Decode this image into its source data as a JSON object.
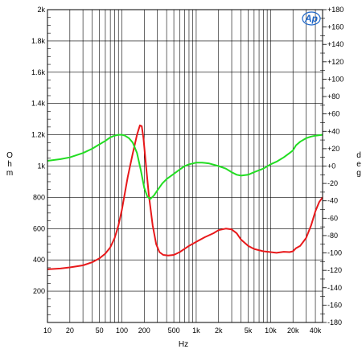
{
  "chart_data": {
    "type": "line",
    "title": "",
    "xlabel": "Hz",
    "ylabel_left": "Ohm",
    "ylabel_right": "deg",
    "x_scale": "log",
    "xlim": [
      10,
      50000
    ],
    "ylim_left": [
      0,
      2000
    ],
    "ylim_right": [
      -180,
      180
    ],
    "grid": true,
    "legend": "none",
    "logo_text": "Ap",
    "x_ticks": [
      {
        "value": 10,
        "label": "10"
      },
      {
        "value": 20,
        "label": "20"
      },
      {
        "value": 50,
        "label": "50"
      },
      {
        "value": 100,
        "label": "100"
      },
      {
        "value": 200,
        "label": "200"
      },
      {
        "value": 500,
        "label": "500"
      },
      {
        "value": 1000,
        "label": "1k"
      },
      {
        "value": 2000,
        "label": "2k"
      },
      {
        "value": 5000,
        "label": "5k"
      },
      {
        "value": 10000,
        "label": "10k"
      },
      {
        "value": 20000,
        "label": "20k"
      },
      {
        "value": 40000,
        "label": "40k"
      }
    ],
    "y_left_ticks": [
      {
        "value": 200,
        "label": "200"
      },
      {
        "value": 400,
        "label": "400"
      },
      {
        "value": 600,
        "label": "600"
      },
      {
        "value": 800,
        "label": "800"
      },
      {
        "value": 1000,
        "label": "1k"
      },
      {
        "value": 1200,
        "label": "1.2k"
      },
      {
        "value": 1400,
        "label": "1.4k"
      },
      {
        "value": 1600,
        "label": "1.6k"
      },
      {
        "value": 1800,
        "label": "1.8k"
      },
      {
        "value": 2000,
        "label": "2k"
      }
    ],
    "y_right_ticks": [
      {
        "value": 180,
        "label": "+180"
      },
      {
        "value": 160,
        "label": "+160"
      },
      {
        "value": 140,
        "label": "+140"
      },
      {
        "value": 120,
        "label": "+120"
      },
      {
        "value": 100,
        "label": "+100"
      },
      {
        "value": 80,
        "label": "+80"
      },
      {
        "value": 60,
        "label": "+60"
      },
      {
        "value": 40,
        "label": "+40"
      },
      {
        "value": 20,
        "label": "+20"
      },
      {
        "value": 0,
        "label": "+0"
      },
      {
        "value": -20,
        "label": "-20"
      },
      {
        "value": -40,
        "label": "-40"
      },
      {
        "value": -60,
        "label": "-60"
      },
      {
        "value": -80,
        "label": "-80"
      },
      {
        "value": -100,
        "label": "-100"
      },
      {
        "value": -120,
        "label": "-120"
      },
      {
        "value": -140,
        "label": "-140"
      },
      {
        "value": -160,
        "label": "-160"
      },
      {
        "value": -180,
        "label": "-180"
      }
    ],
    "series": [
      {
        "axis": "left",
        "color": "#e8191b",
        "points": [
          [
            10,
            340
          ],
          [
            15,
            345
          ],
          [
            20,
            352
          ],
          [
            30,
            365
          ],
          [
            40,
            385
          ],
          [
            50,
            410
          ],
          [
            60,
            440
          ],
          [
            70,
            480
          ],
          [
            80,
            540
          ],
          [
            90,
            620
          ],
          [
            100,
            720
          ],
          [
            110,
            830
          ],
          [
            120,
            930
          ],
          [
            140,
            1080
          ],
          [
            160,
            1200
          ],
          [
            175,
            1260
          ],
          [
            185,
            1255
          ],
          [
            195,
            1180
          ],
          [
            210,
            1020
          ],
          [
            230,
            820
          ],
          [
            260,
            620
          ],
          [
            290,
            500
          ],
          [
            320,
            450
          ],
          [
            360,
            432
          ],
          [
            420,
            428
          ],
          [
            500,
            432
          ],
          [
            600,
            450
          ],
          [
            800,
            490
          ],
          [
            1000,
            515
          ],
          [
            1300,
            545
          ],
          [
            1700,
            570
          ],
          [
            2000,
            590
          ],
          [
            2500,
            600
          ],
          [
            3000,
            595
          ],
          [
            3500,
            570
          ],
          [
            4000,
            530
          ],
          [
            5000,
            490
          ],
          [
            6000,
            470
          ],
          [
            8000,
            455
          ],
          [
            10000,
            450
          ],
          [
            12000,
            445
          ],
          [
            15000,
            452
          ],
          [
            18000,
            450
          ],
          [
            20000,
            455
          ],
          [
            22000,
            475
          ],
          [
            25000,
            490
          ],
          [
            30000,
            540
          ],
          [
            35000,
            620
          ],
          [
            40000,
            710
          ],
          [
            45000,
            770
          ],
          [
            50000,
            800
          ]
        ]
      },
      {
        "axis": "right",
        "color": "#22dd22",
        "points": [
          [
            10,
            6
          ],
          [
            15,
            8
          ],
          [
            20,
            10
          ],
          [
            30,
            15
          ],
          [
            40,
            20
          ],
          [
            50,
            25
          ],
          [
            60,
            29
          ],
          [
            70,
            33
          ],
          [
            80,
            35
          ],
          [
            90,
            36
          ],
          [
            100,
            36
          ],
          [
            110,
            35
          ],
          [
            125,
            32
          ],
          [
            140,
            27
          ],
          [
            160,
            15
          ],
          [
            180,
            -5
          ],
          [
            200,
            -25
          ],
          [
            220,
            -35
          ],
          [
            240,
            -38
          ],
          [
            270,
            -34
          ],
          [
            300,
            -28
          ],
          [
            350,
            -20
          ],
          [
            400,
            -15
          ],
          [
            500,
            -9
          ],
          [
            600,
            -4
          ],
          [
            700,
            0
          ],
          [
            800,
            2
          ],
          [
            900,
            3
          ],
          [
            1000,
            4
          ],
          [
            1200,
            4
          ],
          [
            1500,
            3
          ],
          [
            2000,
            0
          ],
          [
            2500,
            -3
          ],
          [
            3000,
            -7
          ],
          [
            3500,
            -10
          ],
          [
            4000,
            -11
          ],
          [
            5000,
            -10
          ],
          [
            6000,
            -7
          ],
          [
            8000,
            -3
          ],
          [
            10000,
            2
          ],
          [
            12000,
            5
          ],
          [
            15000,
            10
          ],
          [
            18000,
            15
          ],
          [
            20000,
            18
          ],
          [
            22000,
            24
          ],
          [
            25000,
            28
          ],
          [
            30000,
            32
          ],
          [
            35000,
            34
          ],
          [
            40000,
            35
          ],
          [
            50000,
            36
          ]
        ]
      }
    ]
  }
}
